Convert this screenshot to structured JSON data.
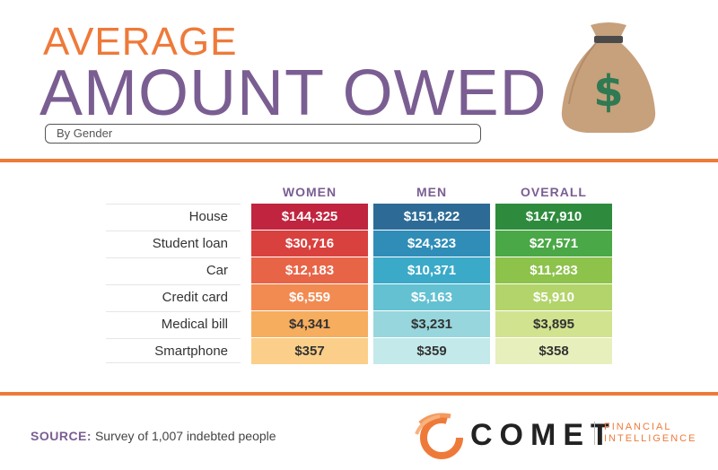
{
  "header": {
    "title_top": "AVERAGE",
    "title_main": "AMOUNT OWED",
    "subtitle": "By Gender"
  },
  "colors": {
    "accent_orange": "#ee7a3a",
    "title_purple": "#7a5e92",
    "women": [
      "#c0243e",
      "#d9413f",
      "#e86447",
      "#f28b52",
      "#f7ad5e",
      "#fbcf89"
    ],
    "men": [
      "#2d6b96",
      "#2f8db8",
      "#3aaac8",
      "#63c1d2",
      "#97d6dc",
      "#c4e9ea"
    ],
    "overall": [
      "#2e8b3e",
      "#4aa847",
      "#8dc24b",
      "#b3d46a",
      "#d2e38f",
      "#e7efbc"
    ]
  },
  "chart_data": {
    "type": "table",
    "title": "AVERAGE AMOUNT OWED",
    "subtitle": "By Gender",
    "columns": [
      "WOMEN",
      "MEN",
      "OVERALL"
    ],
    "rows": [
      "House",
      "Student loan",
      "Car",
      "Credit card",
      "Medical bill",
      "Smartphone"
    ],
    "series": [
      {
        "name": "WOMEN",
        "values": [
          144325,
          30716,
          12183,
          6559,
          4341,
          357
        ],
        "display": [
          "$144,325",
          "$30,716",
          "$12,183",
          "$6,559",
          "$4,341",
          "$357"
        ]
      },
      {
        "name": "MEN",
        "values": [
          151822,
          24323,
          10371,
          5163,
          3231,
          359
        ],
        "display": [
          "$151,822",
          "$24,323",
          "$10,371",
          "$5,163",
          "$3,231",
          "$359"
        ]
      },
      {
        "name": "OVERALL",
        "values": [
          147910,
          27571,
          11283,
          5910,
          3895,
          358
        ],
        "display": [
          "$147,910",
          "$27,571",
          "$11,283",
          "$5,910",
          "$3,895",
          "$358"
        ]
      }
    ]
  },
  "footer": {
    "source_label": "SOURCE:",
    "source_text": "Survey of 1,007 indebted people",
    "logo_name": "COMET",
    "logo_tag_line1": "FINANCIAL",
    "logo_tag_line2": "INTELLIGENCE"
  },
  "icons": {
    "money_bag": "money-bag-icon",
    "bag_symbol": "$"
  }
}
